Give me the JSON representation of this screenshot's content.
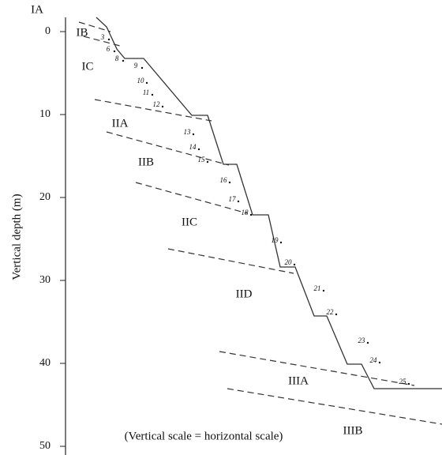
{
  "axis": {
    "label": "Vertical depth (m)",
    "ticks": [
      0,
      10,
      20,
      30,
      40,
      50
    ]
  },
  "zones": [
    "IA",
    "IB",
    "IC",
    "IIA",
    "IIB",
    "IIC",
    "IID",
    "IIIA",
    "IIIB"
  ],
  "points": [
    "3",
    "6",
    "8",
    "9",
    "10",
    "11",
    "12",
    "13",
    "14",
    "15",
    "16",
    "17",
    "18",
    "19",
    "20",
    "21",
    "22",
    "23",
    "24",
    "25"
  ],
  "note": "(Vertical scale = horizontal scale)"
}
